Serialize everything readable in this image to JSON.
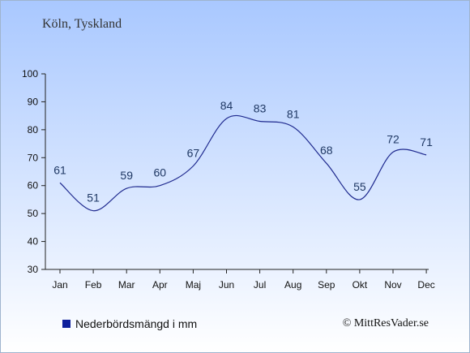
{
  "header": {
    "location": "Köln, Tyskland"
  },
  "chart_data": {
    "type": "line",
    "title": "Köln, Tyskland",
    "categories": [
      "Jan",
      "Feb",
      "Mar",
      "Apr",
      "Maj",
      "Jun",
      "Jul",
      "Aug",
      "Sep",
      "Okt",
      "Nov",
      "Dec"
    ],
    "series": [
      {
        "name": "Nederbördsmängd i mm",
        "values": [
          61,
          51,
          59,
          60,
          67,
          84,
          83,
          81,
          68,
          55,
          72,
          71
        ]
      }
    ],
    "ylim": [
      30,
      100
    ],
    "yticks": [
      30,
      40,
      50,
      60,
      70,
      80,
      90,
      100
    ],
    "grid": false,
    "legend": "bottom-left",
    "line_color": "#1f2a8f",
    "swatch_color": "#0e1f9c"
  },
  "legend": {
    "label": "Nederbördsmängd i mm"
  },
  "footer": {
    "copyright": "© MittResVader.se"
  }
}
